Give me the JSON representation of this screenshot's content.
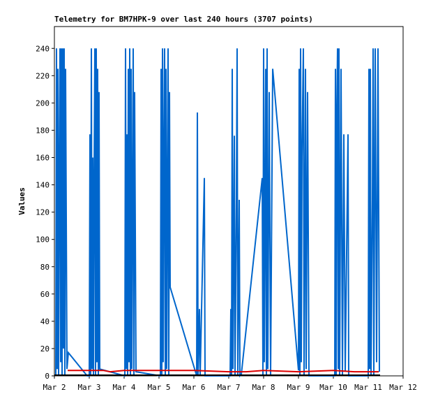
{
  "chart_data": {
    "type": "line",
    "title": "Telemetry for BM7HPK-9 over last 240 hours (3707 points)",
    "y_label": "Values",
    "xlim": [
      2,
      12
    ],
    "xticks": [
      {
        "value": 2,
        "label": "Mar 2"
      },
      {
        "value": 3,
        "label": "Mar 3"
      },
      {
        "value": 4,
        "label": "Mar 4"
      },
      {
        "value": 5,
        "label": "Mar 5"
      },
      {
        "value": 6,
        "label": "Mar 6"
      },
      {
        "value": 7,
        "label": "Mar 7"
      },
      {
        "value": 8,
        "label": "Mar 8"
      },
      {
        "value": 9,
        "label": "Mar 9"
      },
      {
        "value": 10,
        "label": "Mar 10"
      },
      {
        "value": 11,
        "label": "Mar 11"
      },
      {
        "value": 12,
        "label": "Mar 12"
      }
    ],
    "ylim": [
      0,
      256
    ],
    "yticks": [
      0,
      20,
      40,
      60,
      80,
      100,
      120,
      140,
      160,
      180,
      200,
      220,
      240
    ],
    "series": [
      {
        "color": "#0066cc",
        "x": [
          2.04,
          2.06,
          2.08,
          2.1,
          2.12,
          2.14,
          2.16,
          2.18,
          2.2,
          2.22,
          2.24,
          2.26,
          2.28,
          2.3,
          2.32,
          2.36,
          2.4,
          2.94,
          3.0,
          3.02,
          3.04,
          3.06,
          3.08,
          3.1,
          3.12,
          3.14,
          3.16,
          3.18,
          3.2,
          3.22,
          3.24,
          3.26,
          3.28,
          3.3,
          4.02,
          4.04,
          4.06,
          4.08,
          4.1,
          4.12,
          4.14,
          4.16,
          4.18,
          4.2,
          4.22,
          4.26,
          4.28,
          4.3,
          4.34,
          5.04,
          5.06,
          5.08,
          5.1,
          5.12,
          5.14,
          5.16,
          5.18,
          5.2,
          5.22,
          5.26,
          5.28,
          5.3,
          5.32,
          6.08,
          6.1,
          6.12,
          6.16,
          6.18,
          6.3,
          6.32,
          7.04,
          7.06,
          7.08,
          7.1,
          7.12,
          7.16,
          7.18,
          7.22,
          7.24,
          7.26,
          7.3,
          7.32,
          7.36,
          7.96,
          7.98,
          8.0,
          8.02,
          8.06,
          8.08,
          8.1,
          8.12,
          8.16,
          8.2,
          8.26,
          9.0,
          9.02,
          9.04,
          9.06,
          9.08,
          9.1,
          9.14,
          9.16,
          9.2,
          9.22,
          9.26,
          9.3,
          10.04,
          10.06,
          10.08,
          10.1,
          10.12,
          10.14,
          10.16,
          10.18,
          10.22,
          10.26,
          10.3,
          10.34,
          10.42,
          10.44,
          11.0,
          11.02,
          11.04,
          11.06,
          11.08,
          11.12,
          11.14,
          11.16,
          11.2,
          11.24,
          11.28,
          11.32
        ],
        "values": [
          0,
          240,
          5,
          225,
          0,
          145,
          240,
          10,
          240,
          0,
          240,
          20,
          240,
          0,
          225,
          5,
          17,
          0,
          0,
          177,
          0,
          240,
          5,
          160,
          0,
          145,
          240,
          0,
          240,
          10,
          225,
          0,
          208,
          5,
          0,
          240,
          5,
          177,
          0,
          225,
          10,
          240,
          0,
          225,
          5,
          240,
          0,
          208,
          3,
          0,
          225,
          0,
          240,
          10,
          160,
          240,
          0,
          225,
          5,
          240,
          0,
          208,
          65,
          0,
          193,
          0,
          49,
          0,
          145,
          0,
          0,
          49,
          0,
          225,
          5,
          176,
          0,
          129,
          240,
          0,
          129,
          0,
          1,
          145,
          0,
          240,
          10,
          225,
          0,
          240,
          5,
          208,
          0,
          225,
          4,
          225,
          0,
          240,
          10,
          160,
          240,
          0,
          225,
          5,
          208,
          0,
          0,
          225,
          0,
          193,
          240,
          5,
          240,
          0,
          225,
          0,
          177,
          3,
          177,
          0,
          0,
          225,
          5,
          225,
          0,
          129,
          240,
          0,
          240,
          10,
          240,
          3
        ]
      },
      {
        "color": "#dd0000",
        "x": [
          2.38,
          3.4,
          3.6,
          4.0,
          5.0,
          6.0,
          7.0,
          7.5,
          8.0,
          9.0,
          10.0,
          10.6,
          11.3
        ],
        "values": [
          4,
          4,
          3,
          4,
          4,
          4,
          3,
          3,
          4,
          3,
          4,
          3,
          3
        ]
      },
      {
        "color": "#000000",
        "x": [
          2.0,
          11.34
        ],
        "values": [
          0.5,
          0.5
        ]
      }
    ]
  }
}
